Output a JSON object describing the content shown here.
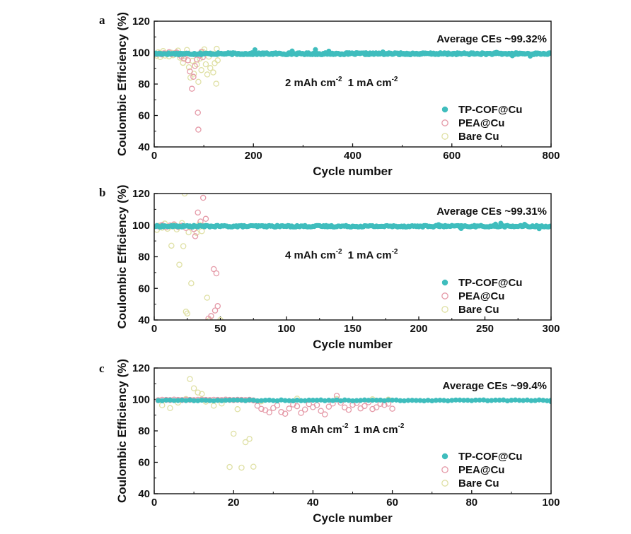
{
  "figure": {
    "colors": {
      "tp_cof": "#3fbdbd",
      "pea": "#e59aa8",
      "bare": "#dfe0a4"
    }
  },
  "chart_data": [
    {
      "type": "scatter",
      "panel_label": "a",
      "xlabel": "Cycle number",
      "ylabel": "Coulombic Efficiency (%)",
      "xlim": [
        0,
        800
      ],
      "ylim": [
        40,
        120
      ],
      "xticks": [
        0,
        200,
        400,
        600,
        800
      ],
      "yticks": [
        40,
        60,
        80,
        100,
        120
      ],
      "annotation_ce": "Average CEs ~99.32%",
      "condition": {
        "cap": "2 mAh cm",
        "cap_exp": "-2",
        "cur": "1 mA cm",
        "cur_exp": "-2"
      },
      "legend_position": "bottom-right",
      "series": [
        {
          "name": "TP-COF@Cu",
          "style": "filled",
          "color": "#3fbdbd",
          "start": 1,
          "end": 800,
          "step": 2,
          "mean": 99.3,
          "noise": 0.6,
          "extra_points": [
            [
              203,
              101.8
            ],
            [
              278,
              101.0
            ],
            [
              325,
              101.9
            ],
            [
              352,
              100.9
            ],
            [
              461,
              100.4
            ],
            [
              690,
              100.2
            ],
            [
              722,
              98.0
            ],
            [
              758,
              97.8
            ]
          ]
        },
        {
          "name": "PEA@Cu",
          "style": "open",
          "color": "#e59aa8",
          "points": [
            [
              5,
              99
            ],
            [
              10,
              99.5
            ],
            [
              15,
              98.8
            ],
            [
              20,
              99.6
            ],
            [
              25,
              99.2
            ],
            [
              30,
              100.3
            ],
            [
              35,
              99.0
            ],
            [
              40,
              99.5
            ],
            [
              45,
              100.1
            ],
            [
              50,
              98.7
            ],
            [
              55,
              97.5
            ],
            [
              60,
              96.2
            ],
            [
              65,
              99.4
            ],
            [
              68,
              95.1
            ],
            [
              72,
              88.0
            ],
            [
              76,
              77.0
            ],
            [
              79,
              84.6
            ],
            [
              82,
              91.5
            ],
            [
              86,
              95.6
            ],
            [
              88,
              61.8
            ],
            [
              89,
              51.0
            ],
            [
              92,
              98.2
            ],
            [
              95,
              100.4
            ],
            [
              98,
              97.1
            ]
          ]
        },
        {
          "name": "Bare Cu",
          "style": "open",
          "color": "#dfe0a4",
          "points": [
            [
              5,
              98
            ],
            [
              8,
              100.2
            ],
            [
              12,
              97.2
            ],
            [
              15,
              99.5
            ],
            [
              18,
              101.0
            ],
            [
              22,
              98.1
            ],
            [
              26,
              99.4
            ],
            [
              30,
              97.6
            ],
            [
              34,
              100.0
            ],
            [
              38,
              98.3
            ],
            [
              42,
              99.6
            ],
            [
              48,
              101.3
            ],
            [
              52,
              96.8
            ],
            [
              58,
              93.5
            ],
            [
              62,
              97.9
            ],
            [
              66,
              101.7
            ],
            [
              70,
              90.7
            ],
            [
              73,
              84.1
            ],
            [
              77,
              94.8
            ],
            [
              80,
              86.6
            ],
            [
              83,
              98.7
            ],
            [
              86,
              92.5
            ],
            [
              89,
              81.4
            ],
            [
              92,
              96.2
            ],
            [
              95,
              88.9
            ],
            [
              98,
              100.6
            ],
            [
              101,
              102.1
            ],
            [
              104,
              92.6
            ],
            [
              107,
              86.1
            ],
            [
              110,
              97.4
            ],
            [
              113,
              90.2
            ],
            [
              116,
              99.3
            ],
            [
              119,
              87.4
            ],
            [
              122,
              93.3
            ],
            [
              125,
              80.2
            ],
            [
              126,
              102.4
            ],
            [
              128,
              95.1
            ]
          ]
        }
      ]
    },
    {
      "type": "scatter",
      "panel_label": "b",
      "xlabel": "Cycle number",
      "ylabel": "Coulombic Efficiency (%)",
      "xlim": [
        0,
        300
      ],
      "ylim": [
        40,
        120
      ],
      "xticks": [
        0,
        50,
        100,
        150,
        200,
        250,
        300
      ],
      "yticks": [
        40,
        60,
        80,
        100,
        120
      ],
      "annotation_ce": "Average CEs ~99.31%",
      "condition": {
        "cap": "4 mAh cm",
        "cap_exp": "-2",
        "cur": "1 mA cm",
        "cur_exp": "-2"
      },
      "legend_position": "bottom-right",
      "series": [
        {
          "name": "TP-COF@Cu",
          "style": "filled",
          "color": "#3fbdbd",
          "start": 1,
          "end": 300,
          "step": 1,
          "mean": 99.3,
          "noise": 0.5,
          "extra_points": [
            [
              215,
              100.3
            ],
            [
              232,
              97.9
            ],
            [
              258,
              100.6
            ],
            [
              262,
              101.2
            ],
            [
              280,
              100.5
            ],
            [
              291,
              97.8
            ]
          ]
        },
        {
          "name": "PEA@Cu",
          "style": "open",
          "color": "#e59aa8",
          "points": [
            [
              3,
              99.3
            ],
            [
              6,
              100.1
            ],
            [
              9,
              98.7
            ],
            [
              12,
              99.8
            ],
            [
              15,
              100.5
            ],
            [
              18,
              98.9
            ],
            [
              21,
              99.6
            ],
            [
              24,
              98.2
            ],
            [
              27,
              99.0
            ],
            [
              30,
              97.5
            ],
            [
              31,
              93.0
            ],
            [
              33,
              108.0
            ],
            [
              35,
              102.3
            ],
            [
              37,
              117.3
            ],
            [
              39,
              104.0
            ],
            [
              41,
              40.9
            ],
            [
              43,
              42.5
            ],
            [
              45,
              72.2
            ],
            [
              46,
              46.0
            ],
            [
              47,
              69.5
            ],
            [
              48,
              48.8
            ]
          ]
        },
        {
          "name": "Bare Cu",
          "style": "open",
          "color": "#dfe0a4",
          "points": [
            [
              2,
              97.0
            ],
            [
              4,
              99.7
            ],
            [
              6,
              98.4
            ],
            [
              8,
              101.0
            ],
            [
              10,
              97.7
            ],
            [
              12,
              99.0
            ],
            [
              13,
              87.0
            ],
            [
              15,
              99.9
            ],
            [
              17,
              97.3
            ],
            [
              19,
              75.0
            ],
            [
              21,
              101.3
            ],
            [
              22,
              86.7
            ],
            [
              23,
              120.0
            ],
            [
              24,
              45.3
            ],
            [
              25,
              44.1
            ],
            [
              26,
              95.5
            ],
            [
              28,
              63.2
            ],
            [
              30,
              99.4
            ],
            [
              32,
              95.1
            ],
            [
              34,
              100.4
            ],
            [
              36,
              96.2
            ],
            [
              38,
              99.5
            ],
            [
              40,
              54.1
            ],
            [
              42,
              40.0
            ],
            [
              50,
              40.0
            ]
          ]
        }
      ]
    },
    {
      "type": "scatter",
      "panel_label": "c",
      "xlabel": "Cycle number",
      "ylabel": "Coulombic Efficiency (%)",
      "xlim": [
        0,
        100
      ],
      "ylim": [
        40,
        120
      ],
      "xticks": [
        0,
        20,
        40,
        60,
        80,
        100
      ],
      "yticks": [
        40,
        60,
        80,
        100,
        120
      ],
      "annotation_ce": "Average CEs ~99.4%",
      "condition": {
        "cap": "8 mAh cm",
        "cap_exp": "-2",
        "cur": "1 mA cm",
        "cur_exp": "-2"
      },
      "legend_position": "bottom-right",
      "series": [
        {
          "name": "TP-COF@Cu",
          "style": "filled",
          "color": "#3fbdbd",
          "start": 1,
          "end": 100,
          "step": 1,
          "mean": 99.4,
          "noise": 0.3,
          "extra_points": [
            [
              100,
              98.6
            ]
          ]
        },
        {
          "name": "PEA@Cu",
          "style": "open",
          "color": "#e59aa8",
          "points": [
            [
              1,
              99.5
            ],
            [
              2,
              99.8
            ],
            [
              3,
              99.7
            ],
            [
              4,
              99.6
            ],
            [
              5,
              99.9
            ],
            [
              6,
              99.7
            ],
            [
              7,
              99.6
            ],
            [
              8,
              99.8
            ],
            [
              9,
              99.7
            ],
            [
              10,
              99.6
            ],
            [
              11,
              99.8
            ],
            [
              12,
              99.9
            ],
            [
              13,
              99.7
            ],
            [
              14,
              99.6
            ],
            [
              15,
              99.8
            ],
            [
              16,
              99.7
            ],
            [
              17,
              99.6
            ],
            [
              18,
              99.9
            ],
            [
              19,
              99.7
            ],
            [
              20,
              99.6
            ],
            [
              21,
              99.8
            ],
            [
              22,
              99.7
            ],
            [
              23,
              99.6
            ],
            [
              24,
              99.8
            ],
            [
              25,
              99.4
            ],
            [
              26,
              96.0
            ],
            [
              27,
              94.0
            ],
            [
              28,
              93.1
            ],
            [
              29,
              91.8
            ],
            [
              30,
              94.5
            ],
            [
              31,
              96.2
            ],
            [
              32,
              92.0
            ],
            [
              33,
              90.9
            ],
            [
              34,
              94.2
            ],
            [
              35,
              96.8
            ],
            [
              36,
              95.7
            ],
            [
              37,
              91.4
            ],
            [
              38,
              93.6
            ],
            [
              39,
              97.0
            ],
            [
              40,
              95.1
            ],
            [
              41,
              96.4
            ],
            [
              42,
              92.7
            ],
            [
              43,
              90.5
            ],
            [
              44,
              95.4
            ],
            [
              45,
              97.4
            ],
            [
              46,
              102.3
            ],
            [
              47,
              97.9
            ],
            [
              48,
              94.9
            ],
            [
              49,
              93.4
            ],
            [
              50,
              96.6
            ],
            [
              51,
              97.7
            ],
            [
              52,
              94.3
            ],
            [
              53,
              95.8
            ],
            [
              54,
              98.2
            ],
            [
              55,
              93.9
            ],
            [
              56,
              95.0
            ],
            [
              57,
              97.2
            ],
            [
              58,
              96.5
            ],
            [
              59,
              97.3
            ],
            [
              60,
              94.1
            ]
          ]
        },
        {
          "name": "Bare Cu",
          "style": "open",
          "color": "#dfe0a4",
          "points": [
            [
              2,
              96.3
            ],
            [
              4,
              94.5
            ],
            [
              6,
              98.0
            ],
            [
              8,
              100.3
            ],
            [
              9,
              113.0
            ],
            [
              10,
              107.1
            ],
            [
              11,
              104.4
            ],
            [
              12,
              103.5
            ],
            [
              13,
              98.6
            ],
            [
              15,
              96.0
            ],
            [
              17,
              97.4
            ],
            [
              19,
              57.0
            ],
            [
              20,
              78.2
            ],
            [
              21,
              93.8
            ],
            [
              22,
              56.6
            ],
            [
              23,
              72.8
            ],
            [
              24,
              74.9
            ],
            [
              25,
              57.2
            ],
            [
              27,
              98.8
            ],
            [
              36,
              100.5
            ],
            [
              46,
              100.3
            ],
            [
              55,
              100.1
            ],
            [
              59,
              99.9
            ]
          ]
        }
      ]
    }
  ]
}
